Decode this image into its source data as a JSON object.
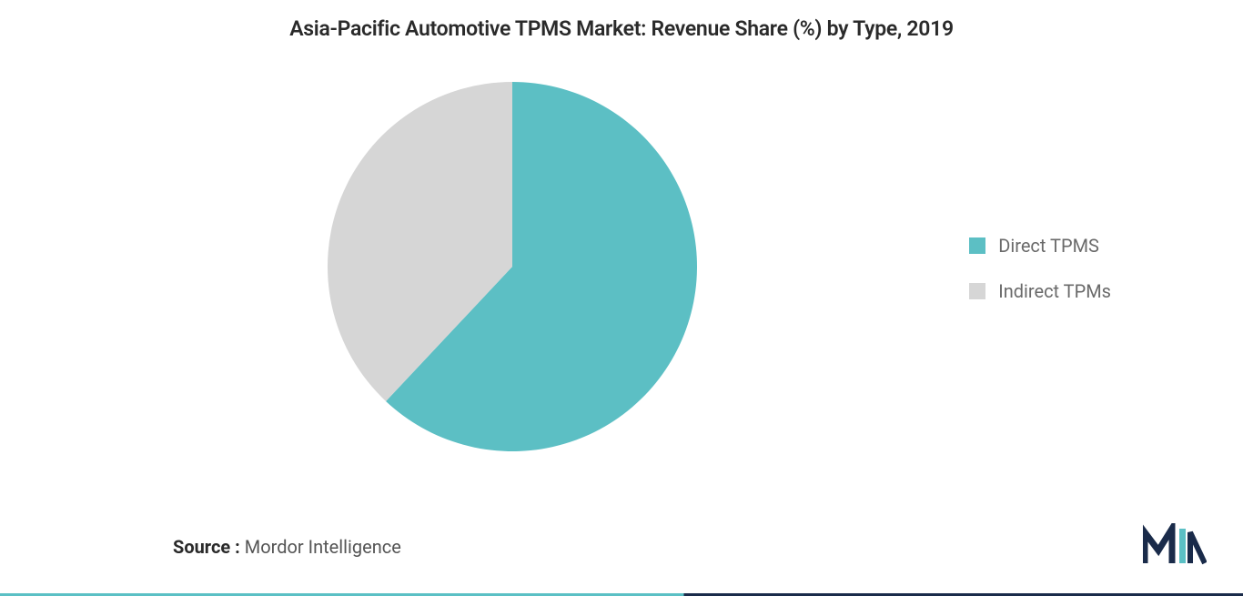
{
  "chart": {
    "title": "Asia-Pacific Automotive TPMS Market: Revenue Share (%) by Type, 2019",
    "type": "pie",
    "background_color": "#ffffff",
    "pie_radius": 203,
    "slices": [
      {
        "label": "Direct TPMS",
        "value": 62,
        "color": "#5cbfc4"
      },
      {
        "label": "Indirect TPMs",
        "value": 38,
        "color": "#d6d6d6"
      }
    ],
    "legend_font_size": 20,
    "legend_text_color": "#6a6a6a",
    "title_font_size": 23,
    "title_color": "#2a2a2a"
  },
  "source": {
    "label": "Source :",
    "value": "Mordor Intelligence"
  },
  "logo": {
    "name": "mordor-intelligence-logo",
    "primary_color": "#1a2b4a",
    "accent_color": "#5bc0c5"
  }
}
